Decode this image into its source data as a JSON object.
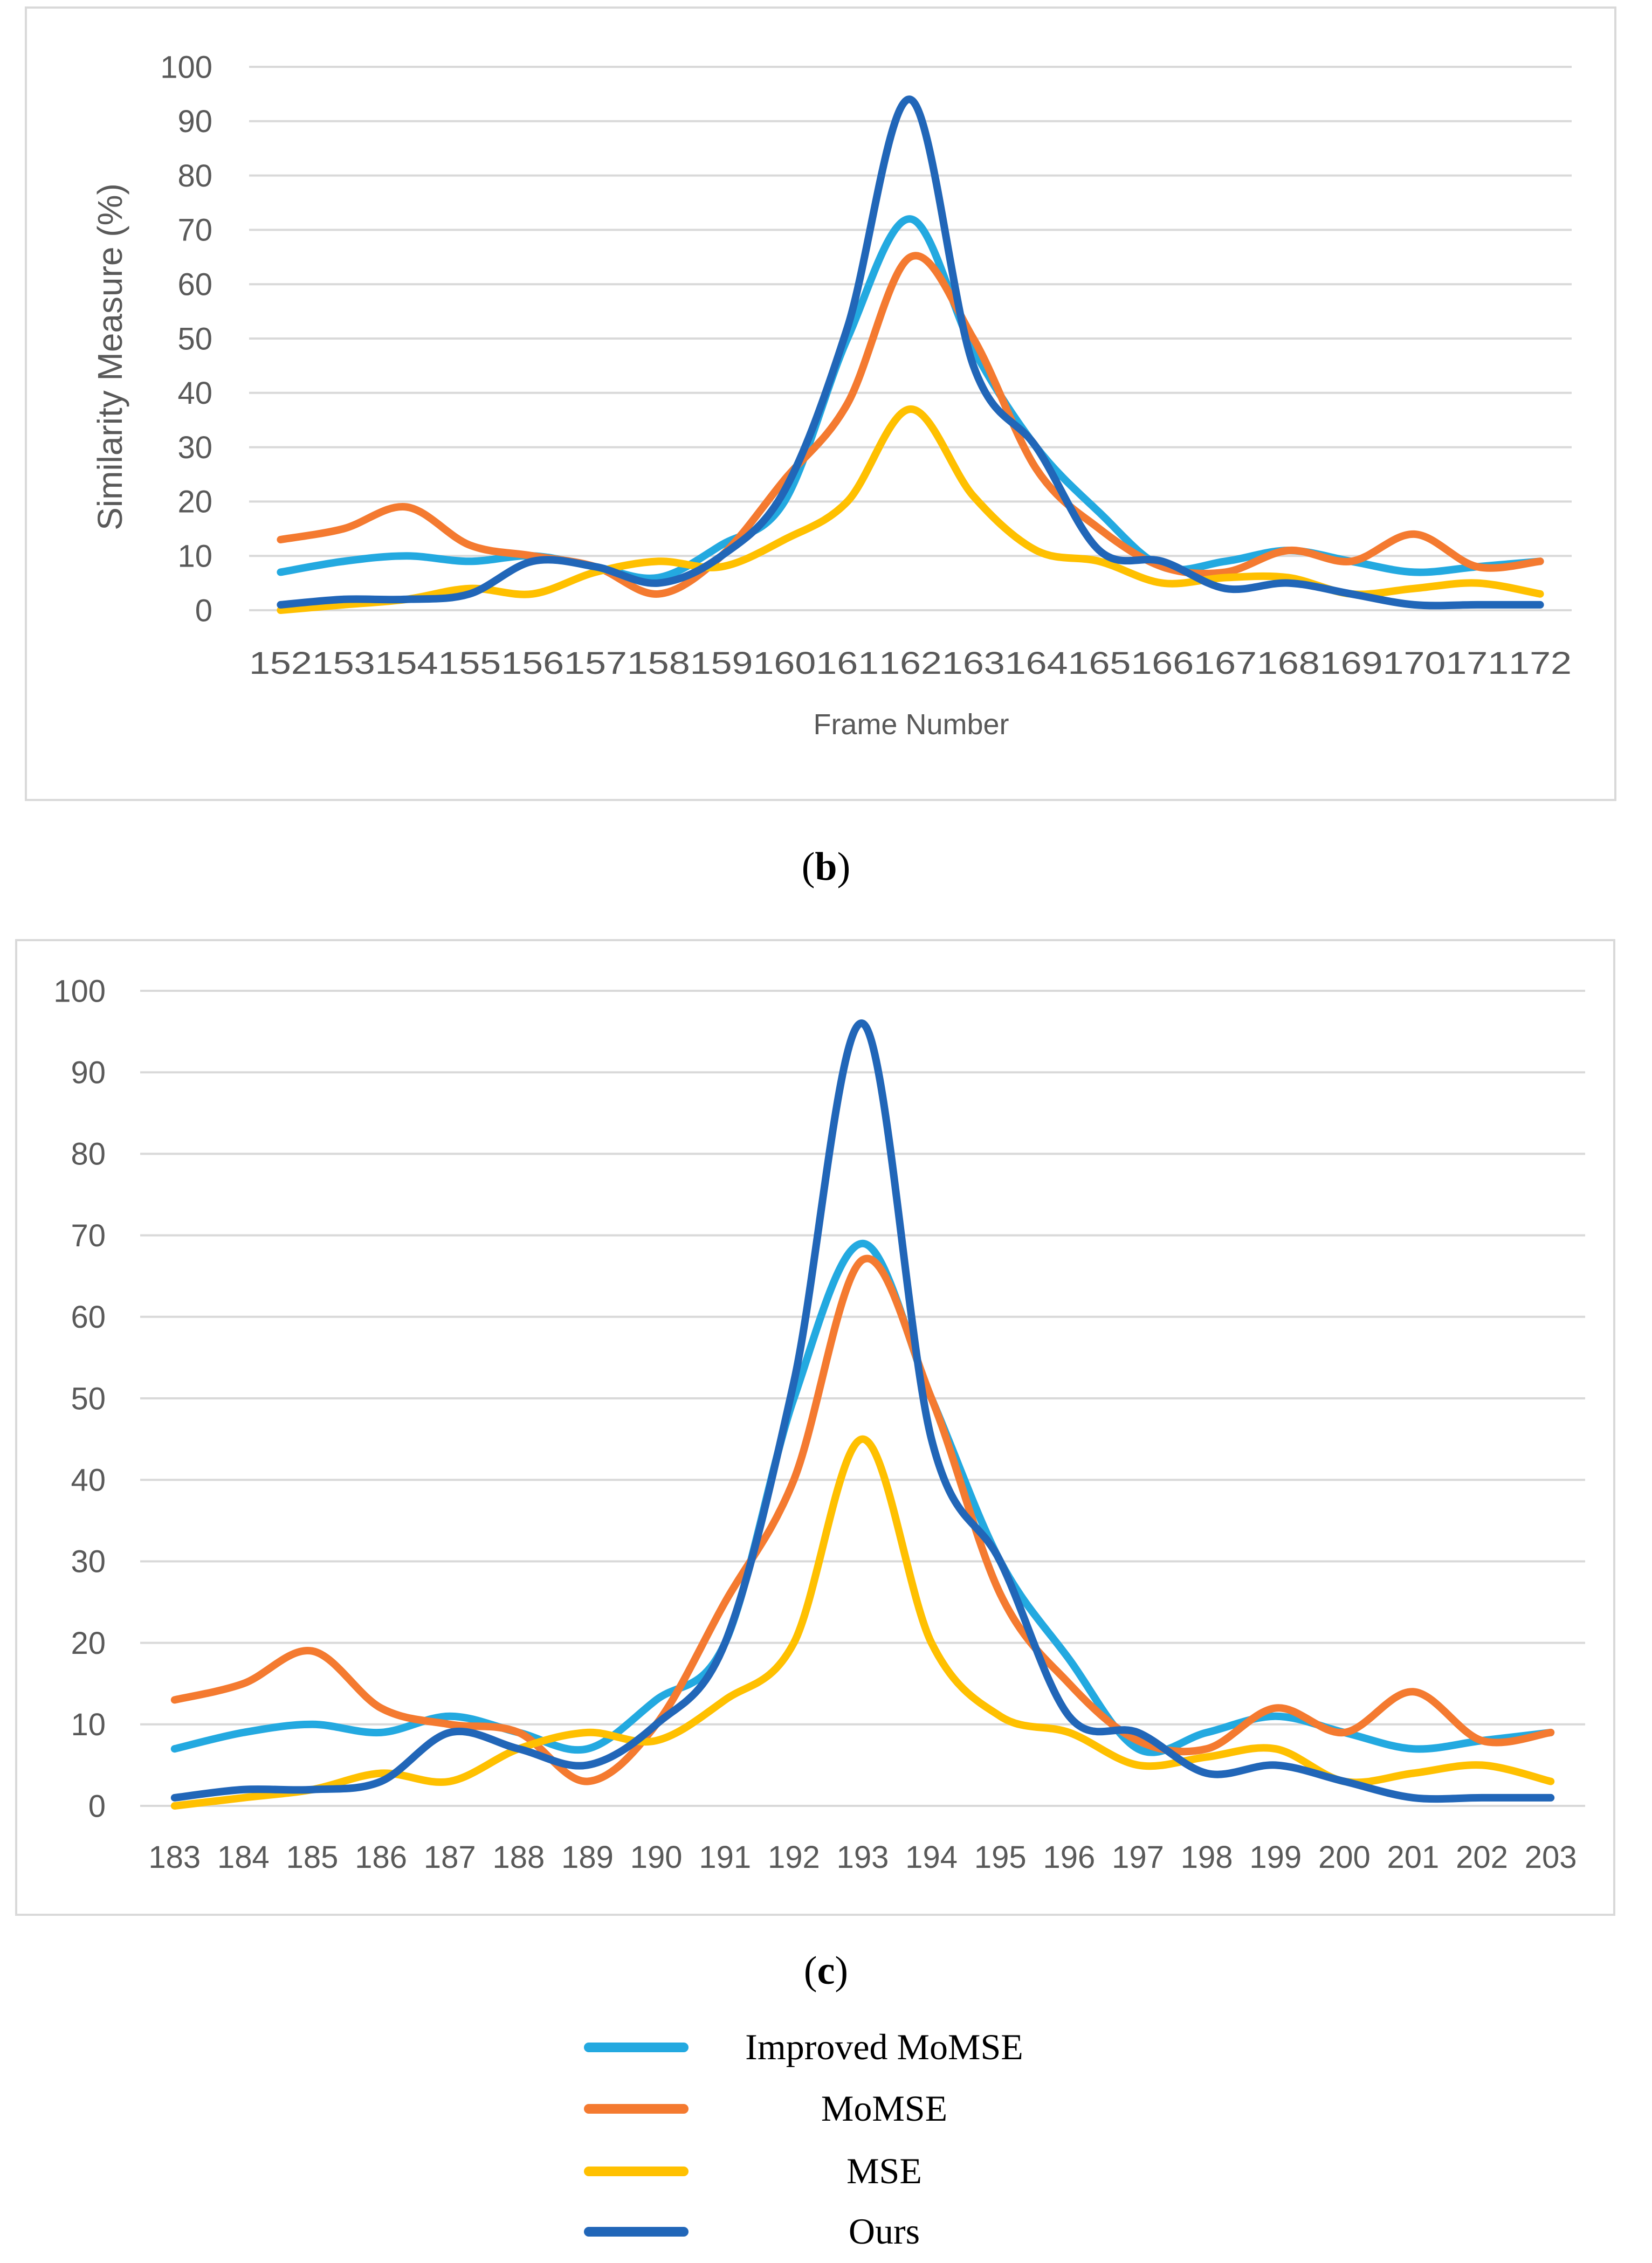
{
  "captions": {
    "b": "b",
    "c": "c"
  },
  "legend": [
    {
      "label": "Improved MoMSE",
      "color": "#23a9e0"
    },
    {
      "label": "MoMSE",
      "color": "#f47a30"
    },
    {
      "label": "MSE",
      "color": "#ffc000"
    },
    {
      "label": "Ours",
      "color": "#2166b8"
    }
  ],
  "chart_data": [
    {
      "type": "line",
      "title": "",
      "xlabel": "Frame Number",
      "ylabel": "Similarity Measure (%)",
      "ylim": [
        0,
        100
      ],
      "yticks": [
        0,
        10,
        20,
        30,
        40,
        50,
        60,
        70,
        80,
        90,
        100
      ],
      "grid": true,
      "smooth": true,
      "x": [
        "152",
        "153",
        "154",
        "155",
        "156",
        "157",
        "158",
        "159",
        "160",
        "161",
        "162",
        "163",
        "164",
        "165",
        "166",
        "167",
        "168",
        "169",
        "170",
        "171",
        "172"
      ],
      "series": [
        {
          "name": "Improved MoMSE",
          "color": "#23a9e0",
          "values": [
            7,
            9,
            10,
            9,
            10,
            8,
            6,
            12,
            20,
            50,
            72,
            48,
            30,
            18,
            8,
            9,
            11,
            9,
            7,
            8,
            9
          ]
        },
        {
          "name": "MoMSE",
          "color": "#f47a30",
          "values": [
            13,
            15,
            19,
            12,
            10,
            8,
            3,
            10,
            24,
            38,
            65,
            50,
            26,
            15,
            8,
            7,
            11,
            9,
            14,
            8,
            9
          ]
        },
        {
          "name": "MSE",
          "color": "#ffc000",
          "values": [
            0,
            1,
            2,
            4,
            3,
            7,
            9,
            8,
            13,
            20,
            37,
            21,
            11,
            9,
            5,
            6,
            6,
            3,
            4,
            5,
            3
          ]
        },
        {
          "name": "Ours",
          "color": "#2166b8",
          "values": [
            1,
            2,
            2,
            3,
            9,
            8,
            5,
            10,
            22,
            52,
            94,
            45,
            30,
            11,
            9,
            4,
            5,
            3,
            1,
            1,
            1
          ]
        }
      ]
    },
    {
      "type": "line",
      "title": "",
      "xlabel": "",
      "ylabel": "",
      "ylim": [
        0,
        100
      ],
      "yticks": [
        0,
        10,
        20,
        30,
        40,
        50,
        60,
        70,
        80,
        90,
        100
      ],
      "grid": true,
      "smooth": true,
      "x": [
        "183",
        "184",
        "185",
        "186",
        "187",
        "188",
        "189",
        "190",
        "191",
        "192",
        "193",
        "194",
        "195",
        "196",
        "197",
        "198",
        "199",
        "200",
        "201",
        "202",
        "203"
      ],
      "series": [
        {
          "name": "Improved MoMSE",
          "color": "#23a9e0",
          "values": [
            7,
            9,
            10,
            9,
            11,
            9,
            7,
            13,
            20,
            50,
            69,
            50,
            30,
            18,
            7,
            9,
            11,
            9,
            7,
            8,
            9
          ]
        },
        {
          "name": "MoMSE",
          "color": "#f47a30",
          "values": [
            13,
            15,
            19,
            12,
            10,
            9,
            3,
            10,
            25,
            40,
            67,
            50,
            26,
            15,
            8,
            7,
            12,
            9,
            14,
            8,
            9
          ]
        },
        {
          "name": "MSE",
          "color": "#ffc000",
          "values": [
            0,
            1,
            2,
            4,
            3,
            7,
            9,
            8,
            13,
            20,
            45,
            20,
            11,
            9,
            5,
            6,
            7,
            3,
            4,
            5,
            3
          ]
        },
        {
          "name": "Ours",
          "color": "#2166b8",
          "values": [
            1,
            2,
            2,
            3,
            9,
            7,
            5,
            10,
            20,
            52,
            96,
            45,
            30,
            11,
            9,
            4,
            5,
            3,
            1,
            1,
            1
          ]
        }
      ]
    }
  ]
}
